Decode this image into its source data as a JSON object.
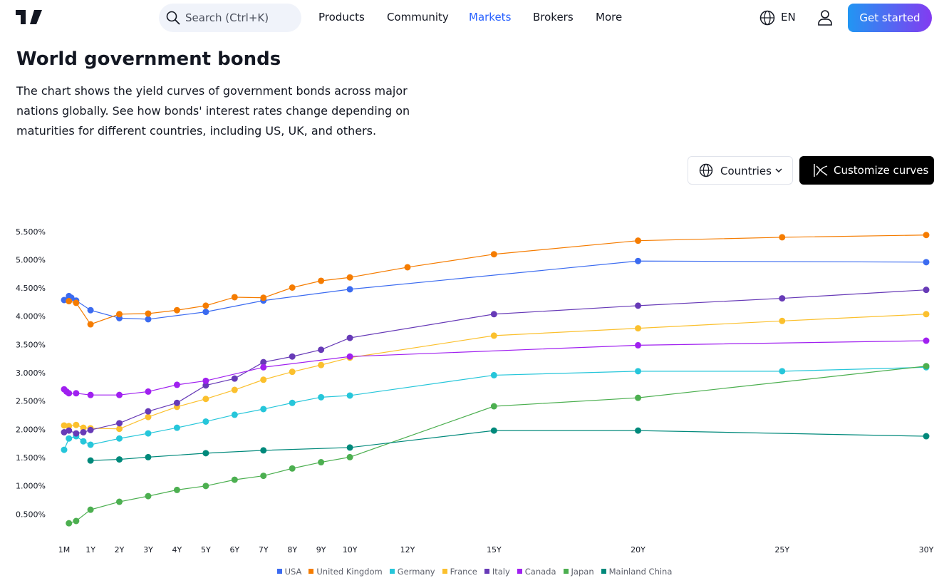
{
  "nav": {
    "search": "Search (Ctrl+K)",
    "links": [
      "Products",
      "Community",
      "Markets",
      "Brokers",
      "More"
    ],
    "language": "EN",
    "cta": "Get started"
  },
  "header": {
    "title": "World government bonds",
    "description": "The chart shows the yield curves of government bonds across major nations globally. See how bonds' interest rates change depending on maturities for different countries, including US, UK, and others."
  },
  "controls": {
    "countries": "Countries",
    "customize": "Customize curves"
  },
  "chart_data": {
    "type": "line",
    "xlim": [
      0.0833,
      30
    ],
    "ylim": [
      0.1,
      5.8
    ],
    "grid": false,
    "xticks": [
      {
        "value": 0.0833,
        "label": "1M"
      },
      {
        "value": 1,
        "label": "1Y"
      },
      {
        "value": 2,
        "label": "2Y"
      },
      {
        "value": 3,
        "label": "3Y"
      },
      {
        "value": 4,
        "label": "4Y"
      },
      {
        "value": 5,
        "label": "5Y"
      },
      {
        "value": 6,
        "label": "6Y"
      },
      {
        "value": 7,
        "label": "7Y"
      },
      {
        "value": 8,
        "label": "8Y"
      },
      {
        "value": 9,
        "label": "9Y"
      },
      {
        "value": 10,
        "label": "10Y"
      },
      {
        "value": 12,
        "label": "12Y"
      },
      {
        "value": 15,
        "label": "15Y"
      },
      {
        "value": 20,
        "label": "20Y"
      },
      {
        "value": 25,
        "label": "25Y"
      },
      {
        "value": 30,
        "label": "30Y"
      }
    ],
    "yticks": [
      {
        "value": 0.5,
        "label": "0.500%"
      },
      {
        "value": 1,
        "label": "1.000%"
      },
      {
        "value": 1.5,
        "label": "1.500%"
      },
      {
        "value": 2,
        "label": "2.000%"
      },
      {
        "value": 2.5,
        "label": "2.500%"
      },
      {
        "value": 3,
        "label": "3.000%"
      },
      {
        "value": 3.5,
        "label": "3.500%"
      },
      {
        "value": 4,
        "label": "4.000%"
      },
      {
        "value": 4.5,
        "label": "4.500%"
      },
      {
        "value": 5,
        "label": "5.000%"
      },
      {
        "value": 5.5,
        "label": "5.500%"
      }
    ],
    "series": [
      {
        "name": "USA",
        "color": "#3b6bf0",
        "x": [
          0.0833,
          0.25,
          0.3333,
          0.5,
          1,
          2,
          3,
          5,
          7,
          10,
          20,
          30
        ],
        "values": [
          4.3,
          4.37,
          4.34,
          4.29,
          4.12,
          3.98,
          3.96,
          4.09,
          4.29,
          4.49,
          4.99,
          4.97
        ]
      },
      {
        "name": "United Kingdom",
        "color": "#f57c00",
        "x": [
          0.25,
          0.5,
          1,
          2,
          3,
          4,
          5,
          6,
          7,
          8,
          9,
          10,
          12,
          15,
          20,
          25,
          30
        ],
        "values": [
          4.28,
          4.25,
          3.87,
          4.05,
          4.06,
          4.12,
          4.2,
          4.35,
          4.34,
          4.52,
          4.64,
          4.7,
          4.88,
          5.11,
          5.35,
          5.41,
          5.45
        ]
      },
      {
        "name": "Germany",
        "color": "#26c6da",
        "x": [
          0.0833,
          0.25,
          0.5,
          0.75,
          1,
          2,
          3,
          4,
          5,
          6,
          7,
          8,
          9,
          10,
          15,
          20,
          25,
          30
        ],
        "values": [
          1.65,
          1.85,
          1.89,
          1.8,
          1.74,
          1.85,
          1.94,
          2.04,
          2.15,
          2.27,
          2.37,
          2.48,
          2.58,
          2.61,
          2.97,
          3.04,
          3.04,
          3.11
        ]
      },
      {
        "name": "France",
        "color": "#fbc02d",
        "x": [
          0.0833,
          0.25,
          0.5,
          0.75,
          1,
          2,
          3,
          4,
          5,
          6,
          7,
          8,
          9,
          10,
          15,
          20,
          25,
          30
        ],
        "values": [
          2.08,
          2.07,
          2.09,
          2.04,
          2.03,
          2.02,
          2.23,
          2.41,
          2.55,
          2.71,
          2.89,
          3.03,
          3.15,
          3.28,
          3.67,
          3.8,
          3.93,
          4.05
        ]
      },
      {
        "name": "Italy",
        "color": "#673ab7",
        "x": [
          0.0833,
          0.25,
          0.5,
          0.75,
          1,
          2,
          3,
          4,
          5,
          6,
          7,
          8,
          9,
          10,
          15,
          20,
          25,
          30
        ],
        "values": [
          1.96,
          1.99,
          1.94,
          1.96,
          2.0,
          2.12,
          2.33,
          2.48,
          2.79,
          2.91,
          3.2,
          3.3,
          3.42,
          3.63,
          4.05,
          4.2,
          4.33,
          4.48
        ]
      },
      {
        "name": "Canada",
        "color": "#a020f0",
        "x": [
          0.0833,
          0.1667,
          0.25,
          0.5,
          1,
          2,
          3,
          4,
          5,
          7,
          10,
          20,
          30
        ],
        "values": [
          2.72,
          2.68,
          2.65,
          2.65,
          2.62,
          2.62,
          2.68,
          2.8,
          2.87,
          3.11,
          3.3,
          3.5,
          3.58
        ]
      },
      {
        "name": "Japan",
        "color": "#4caf50",
        "x": [
          0.25,
          0.5,
          1,
          2,
          3,
          4,
          5,
          6,
          7,
          8,
          9,
          10,
          15,
          20,
          30
        ],
        "values": [
          0.35,
          0.39,
          0.59,
          0.73,
          0.83,
          0.94,
          1.01,
          1.12,
          1.19,
          1.32,
          1.43,
          1.52,
          2.42,
          2.57,
          3.13
        ]
      },
      {
        "name": "Mainland China",
        "color": "#00897b",
        "x": [
          1,
          2,
          3,
          5,
          7,
          10,
          15,
          20,
          30
        ],
        "values": [
          1.46,
          1.48,
          1.52,
          1.59,
          1.64,
          1.69,
          1.99,
          1.99,
          1.89
        ]
      }
    ]
  }
}
